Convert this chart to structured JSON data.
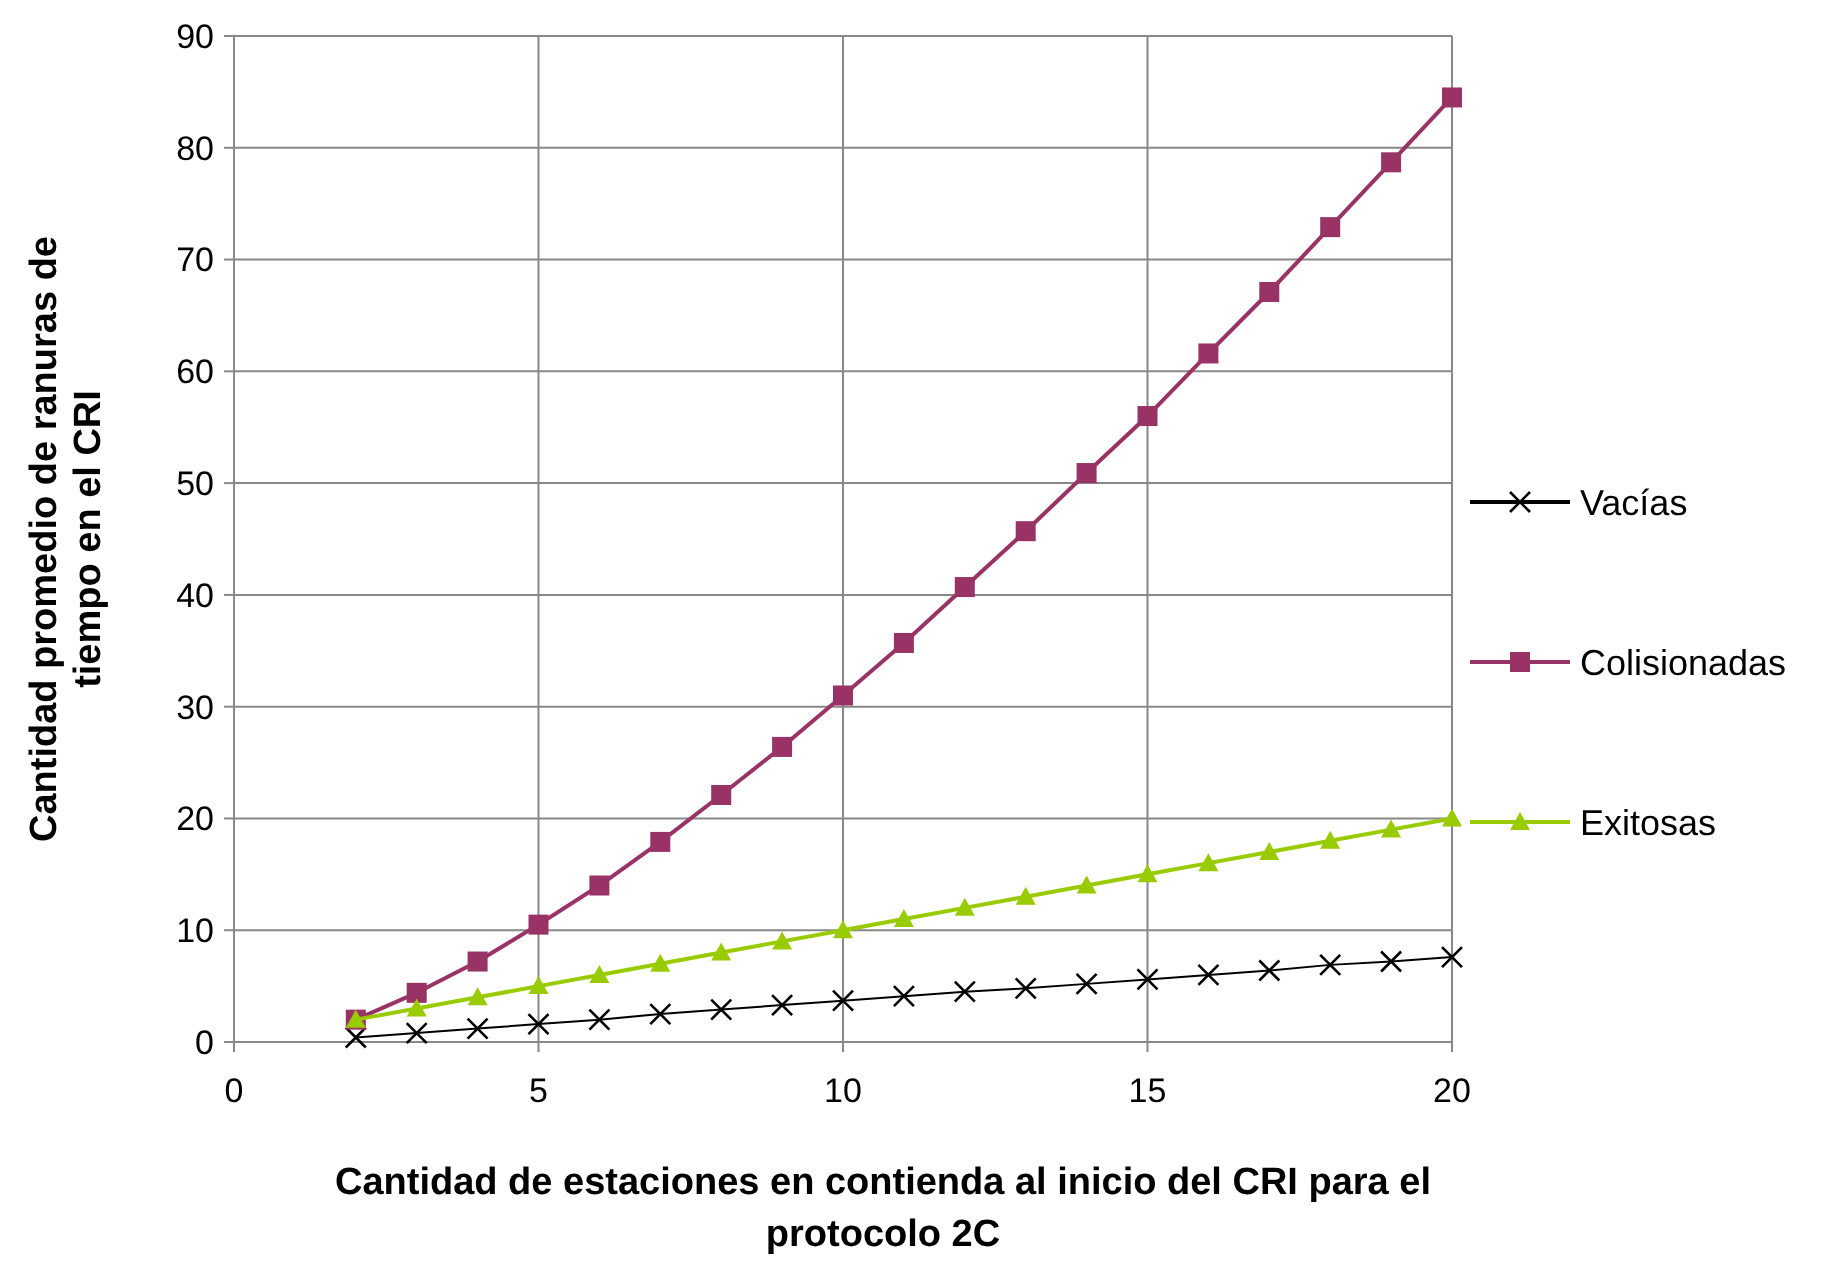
{
  "chart_data": {
    "type": "line",
    "xlabel": "Cantidad de estaciones en contienda al inicio del CRI para el protocolo 2C",
    "ylabel": "Cantidad promedio de ranuras de tiempo en el CRI",
    "x": [
      2,
      3,
      4,
      5,
      6,
      7,
      8,
      9,
      10,
      11,
      12,
      13,
      14,
      15,
      16,
      17,
      18,
      19,
      20
    ],
    "series": [
      {
        "name": "Vacías",
        "color": "#000000",
        "marker": "cross",
        "values": [
          0.4,
          0.8,
          1.2,
          1.6,
          2.0,
          2.5,
          2.9,
          3.3,
          3.7,
          4.1,
          4.5,
          4.8,
          5.2,
          5.6,
          6.0,
          6.4,
          6.9,
          7.2,
          7.6
        ]
      },
      {
        "name": "Colisionadas",
        "color": "#993366",
        "marker": "square",
        "values": [
          2.0,
          4.4,
          7.2,
          10.5,
          14,
          17.9,
          22.1,
          26.4,
          31,
          35.7,
          40.7,
          45.7,
          50.9,
          56,
          61.6,
          67.1,
          72.9,
          78.7,
          84.5
        ]
      },
      {
        "name": "Exitosas",
        "color": "#99cc00",
        "marker": "triangle",
        "values": [
          2,
          3,
          4,
          5,
          6,
          7,
          8,
          9,
          10,
          11,
          12,
          13,
          14,
          15,
          16,
          17,
          18,
          19,
          20
        ]
      }
    ],
    "xlim": [
      0,
      20
    ],
    "xticks": [
      0,
      5,
      10,
      15,
      20
    ],
    "ylim": [
      0,
      90
    ],
    "yticks": [
      0,
      10,
      20,
      30,
      40,
      50,
      60,
      70,
      80,
      90
    ],
    "grid": true,
    "legend": "right"
  }
}
